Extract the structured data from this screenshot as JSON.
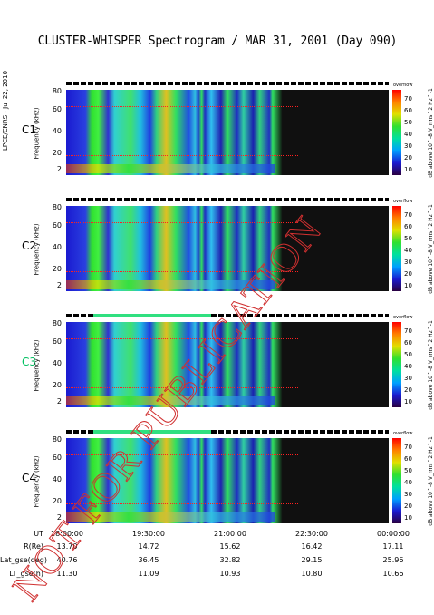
{
  "title": "CLUSTER-WHISPER Spectrogram / MAR 31, 2001 (Day 090)",
  "side_label": "LPCE/CNRS - Jul 22, 2010",
  "panels": [
    {
      "label": "C1",
      "label_color": "#000000"
    },
    {
      "label": "C2",
      "label_color": "#000000"
    },
    {
      "label": "C3",
      "label_color": "#00c060"
    },
    {
      "label": "C4",
      "label_color": "#000000"
    }
  ],
  "chart_data": {
    "type": "heatmap",
    "title": "CLUSTER-WHISPER Spectrogram / MAR 31, 2001 (Day 090)",
    "ylabel": "Frequency (kHz)",
    "yticks": [
      "2",
      "20",
      "40",
      "60",
      "80"
    ],
    "ylim": [
      2,
      80
    ],
    "colorbar": {
      "label": "dB above 10^-8 V_rms^2 Hz^-1",
      "unit": "overflow",
      "ticks": [
        "10",
        "20",
        "30",
        "40",
        "50",
        "60",
        "70"
      ],
      "range": [
        10,
        70
      ]
    },
    "xticks": [
      "18:00:00",
      "19:30:00",
      "21:00:00",
      "22:30:00",
      "00:00:00"
    ],
    "ephemeris": [
      {
        "label": "UT",
        "values": [
          "18:00:00",
          "19:30:00",
          "21:00:00",
          "22:30:00",
          "00:00:00"
        ]
      },
      {
        "label": "R(Re)",
        "values": [
          "13.70",
          "14.72",
          "15.62",
          "16.42",
          "17.11"
        ]
      },
      {
        "label": "Lat_gse(deg)",
        "values": [
          "40.76",
          "36.45",
          "32.82",
          "29.15",
          "25.96"
        ]
      },
      {
        "label": "LT_gse(h)",
        "values": [
          "11.30",
          "11.09",
          "10.93",
          "10.80",
          "10.66"
        ]
      }
    ],
    "no_data_after": "22:30:00"
  },
  "watermark_text": "NOT FOR PUBLICATION",
  "colors": {
    "watermark": "#d03030",
    "nodata": "#101010"
  }
}
